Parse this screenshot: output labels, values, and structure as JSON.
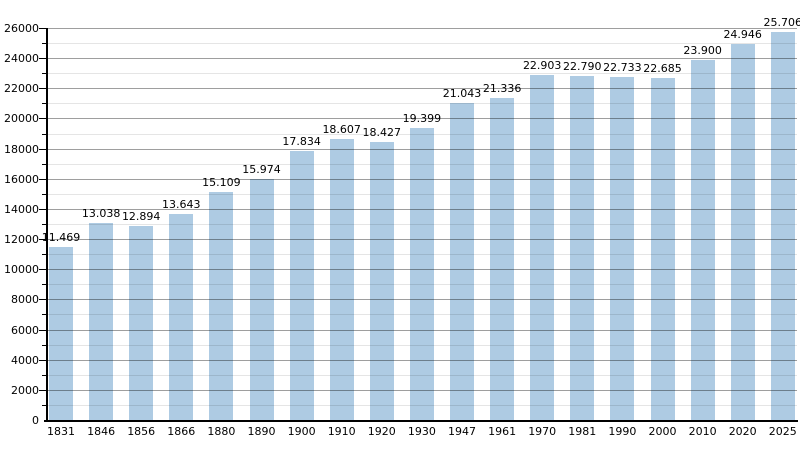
{
  "chart_data": {
    "type": "bar",
    "title": "",
    "xlabel": "",
    "ylabel": "",
    "categories": [
      "1831",
      "1846",
      "1856",
      "1866",
      "1880",
      "1890",
      "1900",
      "1910",
      "1920",
      "1930",
      "1947",
      "1961",
      "1970",
      "1981",
      "1990",
      "2000",
      "2010",
      "2020",
      "2025"
    ],
    "values": [
      11469,
      13038,
      12894,
      13643,
      15109,
      15974,
      17834,
      18607,
      18427,
      19399,
      21043,
      21336,
      22903,
      22790,
      22733,
      22685,
      23900,
      24946,
      25706
    ],
    "value_labels": [
      "11.469",
      "13.038",
      "12.894",
      "13.643",
      "15.109",
      "15.974",
      "17.834",
      "18.607",
      "18.427",
      "19.399",
      "21.043",
      "21.336",
      "22.903",
      "22.790",
      "22.733",
      "22.685",
      "23.900",
      "24.946",
      "25.706"
    ],
    "ylim": [
      0,
      26000
    ],
    "y_major_step": 2000,
    "y_minor_step": 1000,
    "y_tick_labels": [
      "0",
      "2000",
      "4000",
      "6000",
      "8000",
      "10000",
      "12000",
      "14000",
      "16000",
      "18000",
      "20000",
      "22000",
      "24000",
      "26000"
    ],
    "grid": true,
    "legend": "none",
    "bar_color": "#aecbe3",
    "axis_color": "#000000",
    "label_color": "#000000",
    "major_grid_color": "rgba(0,0,0,0.38)",
    "minor_grid_color": "rgba(0,0,0,0.10)",
    "background_color": "#ffffff"
  }
}
